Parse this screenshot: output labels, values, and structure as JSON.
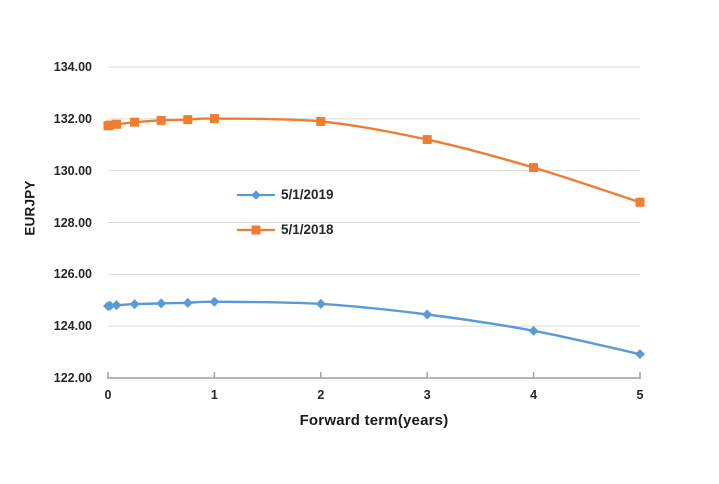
{
  "chart_data": {
    "type": "line",
    "title": "",
    "xlabel": "Forward term(years)",
    "ylabel": "EURJPY",
    "x": [
      0,
      0.02,
      0.08,
      0.25,
      0.5,
      0.75,
      1,
      2,
      3,
      4,
      5
    ],
    "series": [
      {
        "name": "5/1/2019",
        "color": "#5B9BD5",
        "marker": "diamond",
        "values": [
          124.78,
          124.79,
          124.81,
          124.85,
          124.88,
          124.9,
          124.94,
          124.86,
          124.45,
          123.82,
          122.92
        ]
      },
      {
        "name": "5/1/2018",
        "color": "#ED7D31",
        "marker": "square",
        "values": [
          131.73,
          131.76,
          131.79,
          131.87,
          131.94,
          131.97,
          132.01,
          131.9,
          131.2,
          130.12,
          128.78
        ]
      }
    ],
    "xlim": [
      0,
      5
    ],
    "ylim": [
      122,
      134
    ],
    "x_ticks": [
      "0",
      "1",
      "2",
      "3",
      "4",
      "5"
    ],
    "y_ticks": [
      "122.00",
      "124.00",
      "126.00",
      "128.00",
      "130.00",
      "132.00",
      "134.00"
    ],
    "grid": "horizontal",
    "legend_position": "overlay-center-left",
    "colors": {
      "gridline": "#D9D9D9",
      "axis_line": "#9E9E9E",
      "text": "#262626",
      "background": "#FFFFFF"
    }
  }
}
